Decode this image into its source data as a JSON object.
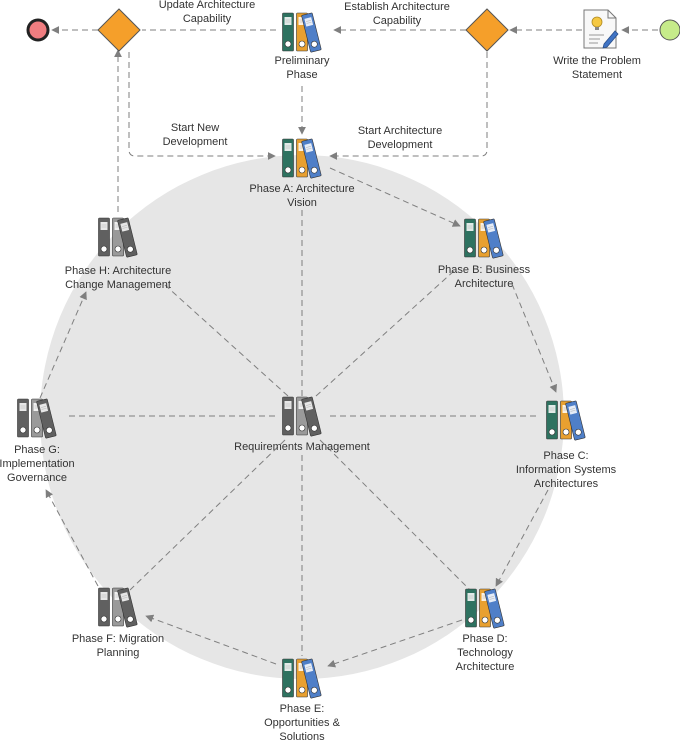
{
  "diagram": {
    "colors": {
      "background_circle": "#e6e6e6",
      "arrow": "#7f7f7f",
      "binder_green": "#2e7260",
      "binder_orange": "#e8a030",
      "binder_blue": "#4f7fc8",
      "binder_dark": "#606060",
      "binder_gray": "#9a9a9a",
      "decision": "#f59f2a",
      "start_event": "#c6eb8a",
      "end_event": "#f07d80"
    },
    "nodes": {
      "preliminary": {
        "label": "Preliminary\nPhase",
        "icon": "binders-color-icon"
      },
      "phase_a": {
        "label": "Phase A: Architecture\nVision",
        "icon": "binders-color-icon"
      },
      "phase_b": {
        "label": "Phase B: Business\nArchitecture",
        "icon": "binders-color-icon"
      },
      "phase_c": {
        "label": "Phase C:\nInformation Systems\nArchitectures",
        "icon": "binders-color-icon"
      },
      "phase_d": {
        "label": "Phase D:\nTechnology\nArchitecture",
        "icon": "binders-color-icon"
      },
      "phase_e": {
        "label": "Phase E:\nOpportunities &\nSolutions",
        "icon": "binders-color-icon"
      },
      "phase_f": {
        "label": "Phase F: Migration\nPlanning",
        "icon": "binders-gray-icon"
      },
      "phase_g": {
        "label": "Phase G:\nImplementation\nGovernance",
        "icon": "binders-gray-icon"
      },
      "phase_h": {
        "label": "Phase H: Architecture\nChange Management",
        "icon": "binders-gray-icon"
      },
      "requirements": {
        "label": "Requirements Management",
        "icon": "binders-gray-icon"
      },
      "problem_statement": {
        "label": "Write the Problem\nStatement",
        "icon": "document-pencil-icon"
      }
    },
    "edge_labels": {
      "update_capability": "Update Architecture\nCapability",
      "establish_capability": "Establish Architecture\nCapability",
      "start_new_development": "Start New\nDevelopment",
      "start_architecture_development": "Start Architecture\nDevelopment"
    }
  }
}
